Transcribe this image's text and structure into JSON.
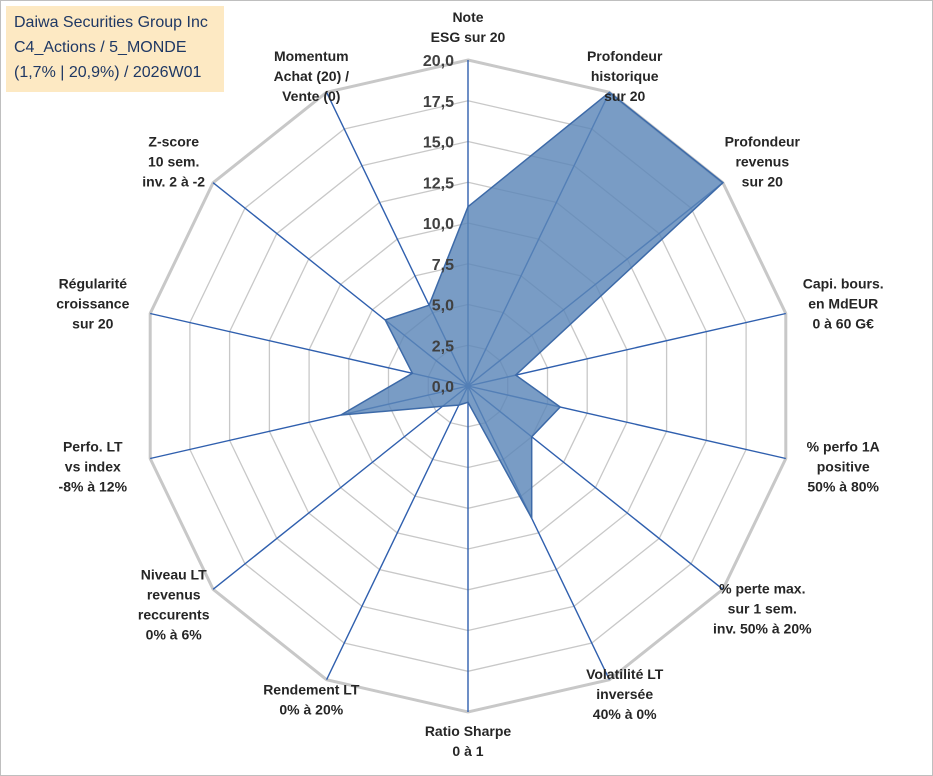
{
  "info_box": {
    "line1": "Daiwa Securities Group Inc",
    "line2": "C4_Actions / 5_MONDE",
    "line3": "(1,7% | 20,9%) / 2026W01"
  },
  "colors": {
    "fill": "#5b86b8",
    "stroke": "#3d6aa8",
    "ring": "#c8c8c8",
    "spoke": "#2f5fae"
  },
  "chart_data": {
    "type": "radar",
    "title": "",
    "rmin": 0,
    "rmax": 20,
    "ticks": [
      "0,0",
      "2,5",
      "5,0",
      "7,5",
      "10,0",
      "12,5",
      "15,0",
      "17,5",
      "20,0"
    ],
    "axes": [
      {
        "label": [
          "Note",
          "ESG sur 20"
        ],
        "value": 11.0
      },
      {
        "label": [
          "Profondeur",
          "historique",
          "sur 20"
        ],
        "value": 20.0
      },
      {
        "label": [
          "Profondeur",
          "revenus",
          "sur 20"
        ],
        "value": 20.0
      },
      {
        "label": [
          "Capi. bours.",
          "en MdEUR",
          "0 à 60 G€"
        ],
        "value": 3.0
      },
      {
        "label": [
          "% perfo 1A",
          "positive",
          "50% à 80%"
        ],
        "value": 5.8
      },
      {
        "label": [
          "% perte max.",
          "sur 1 sem.",
          "inv. 50% à 20%"
        ],
        "value": 5.0
      },
      {
        "label": [
          "Volatilité LT",
          "inversée",
          "40% à 0%"
        ],
        "value": 9.0
      },
      {
        "label": [
          "Ratio Sharpe",
          "0 à 1"
        ],
        "value": 1.0
      },
      {
        "label": [
          "Rendement LT",
          "0% à 20%"
        ],
        "value": 1.3
      },
      {
        "label": [
          "Niveau LT",
          "revenus",
          "reccurents",
          "0% à 6%"
        ],
        "value": 2.0
      },
      {
        "label": [
          "Perfo. LT",
          "vs index",
          "-8% à 12%"
        ],
        "value": 8.0
      },
      {
        "label": [
          "Régularité",
          "croissance",
          "sur 20"
        ],
        "value": 3.5
      },
      {
        "label": [
          "Z-score",
          "10 sem.",
          "inv. 2 à -2"
        ],
        "value": 6.5
      },
      {
        "label": [
          "Momentum",
          "Achat (20) /",
          "Vente (0)"
        ],
        "value": 5.5
      }
    ]
  }
}
